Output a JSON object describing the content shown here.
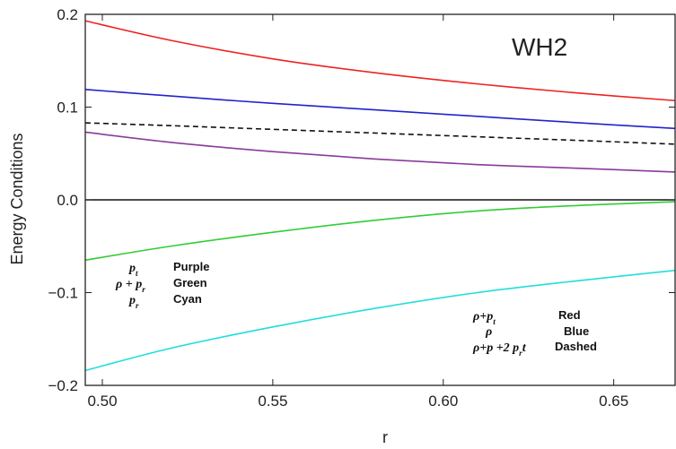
{
  "chart_data": {
    "type": "line",
    "title": "WH2",
    "xlabel": "r",
    "ylabel": "Energy  Conditions",
    "xlim": [
      0.495,
      0.668
    ],
    "ylim": [
      -0.2,
      0.2
    ],
    "x_ticks": [
      0.5,
      0.55,
      0.6,
      0.65
    ],
    "x_tick_labels": [
      "0.50",
      "0.55",
      "0.60",
      "0.65"
    ],
    "y_ticks": [
      -0.2,
      -0.1,
      0.0,
      0.1,
      0.2
    ],
    "y_tick_labels": [
      "−0.2",
      "−0.1",
      "0.0",
      "0.1",
      "0.2"
    ],
    "series": [
      {
        "color": "#ee2222",
        "dashed": false,
        "x": [
          0.495,
          0.52,
          0.55,
          0.58,
          0.61,
          0.64,
          0.668
        ],
        "y": [
          0.193,
          0.172,
          0.152,
          0.137,
          0.125,
          0.115,
          0.107
        ]
      },
      {
        "color": "#2222cc",
        "dashed": false,
        "x": [
          0.495,
          0.52,
          0.55,
          0.58,
          0.61,
          0.64,
          0.668
        ],
        "y": [
          0.119,
          0.112,
          0.104,
          0.097,
          0.09,
          0.083,
          0.077
        ]
      },
      {
        "color": "#111111",
        "dashed": true,
        "x": [
          0.495,
          0.52,
          0.55,
          0.58,
          0.61,
          0.64,
          0.668
        ],
        "y": [
          0.083,
          0.08,
          0.076,
          0.072,
          0.068,
          0.064,
          0.06
        ]
      },
      {
        "color": "#8a3a9a",
        "dashed": false,
        "x": [
          0.495,
          0.52,
          0.55,
          0.58,
          0.61,
          0.64,
          0.668
        ],
        "y": [
          0.073,
          0.062,
          0.052,
          0.044,
          0.038,
          0.034,
          0.03
        ]
      },
      {
        "color": "#33cc33",
        "dashed": false,
        "x": [
          0.495,
          0.52,
          0.55,
          0.58,
          0.61,
          0.64,
          0.668
        ],
        "y": [
          -0.065,
          -0.05,
          -0.035,
          -0.022,
          -0.012,
          -0.006,
          -0.002
        ]
      },
      {
        "color": "#22dddd",
        "dashed": false,
        "x": [
          0.495,
          0.52,
          0.55,
          0.58,
          0.61,
          0.64,
          0.668
        ],
        "y": [
          -0.184,
          -0.16,
          -0.137,
          -0.117,
          -0.1,
          -0.087,
          -0.076
        ]
      }
    ],
    "annotations": [
      {
        "lines": [
          "p",
          "ρ + p",
          "p"
        ],
        "subs": [
          "t",
          "r",
          "r"
        ],
        "labels": [
          "Purple",
          "Green",
          "Cyan"
        ]
      },
      {
        "lines": [
          "ρ+p",
          "ρ",
          "ρ+p +2 p"
        ],
        "subs": [
          "t",
          "",
          "r"
        ],
        "labels": [
          "Red",
          "Blue",
          "Dashed"
        ]
      }
    ]
  }
}
